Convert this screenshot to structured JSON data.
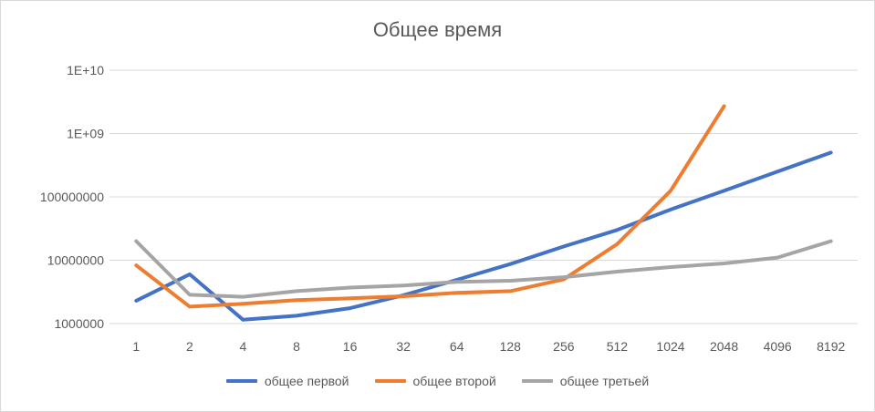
{
  "chart_data": {
    "type": "line",
    "title": "Общее время",
    "xlabel": "",
    "ylabel": "",
    "y_scale": "log",
    "ylim": [
      1000000,
      10000000000
    ],
    "y_ticks": [
      1000000,
      10000000,
      100000000,
      1000000000,
      10000000000
    ],
    "y_tick_labels": [
      "1000000",
      "10000000",
      "100000000",
      "1E+09",
      "1E+10"
    ],
    "grid": true,
    "legend_position": "bottom",
    "categories": [
      "1",
      "2",
      "4",
      "8",
      "16",
      "32",
      "64",
      "128",
      "256",
      "512",
      "1024",
      "2048",
      "4096",
      "8192"
    ],
    "series": [
      {
        "name": "общее первой",
        "color": "#4472c4",
        "values": [
          2300000,
          6000000,
          1150000,
          1330000,
          1750000,
          2800000,
          4900000,
          8700000,
          16500000,
          30000000,
          63000000,
          125000000,
          250000000,
          500000000
        ]
      },
      {
        "name": "общее второй",
        "color": "#ed7d31",
        "values": [
          8300000,
          1850000,
          2050000,
          2350000,
          2500000,
          2700000,
          3050000,
          3250000,
          5000000,
          18000000,
          125000000,
          2700000000,
          null,
          null
        ]
      },
      {
        "name": "общее третьей",
        "color": "#a5a5a5",
        "values": [
          20000000,
          2850000,
          2650000,
          3250000,
          3700000,
          4000000,
          4550000,
          4750000,
          5400000,
          6600000,
          7800000,
          8900000,
          11000000,
          20000000
        ]
      }
    ]
  }
}
